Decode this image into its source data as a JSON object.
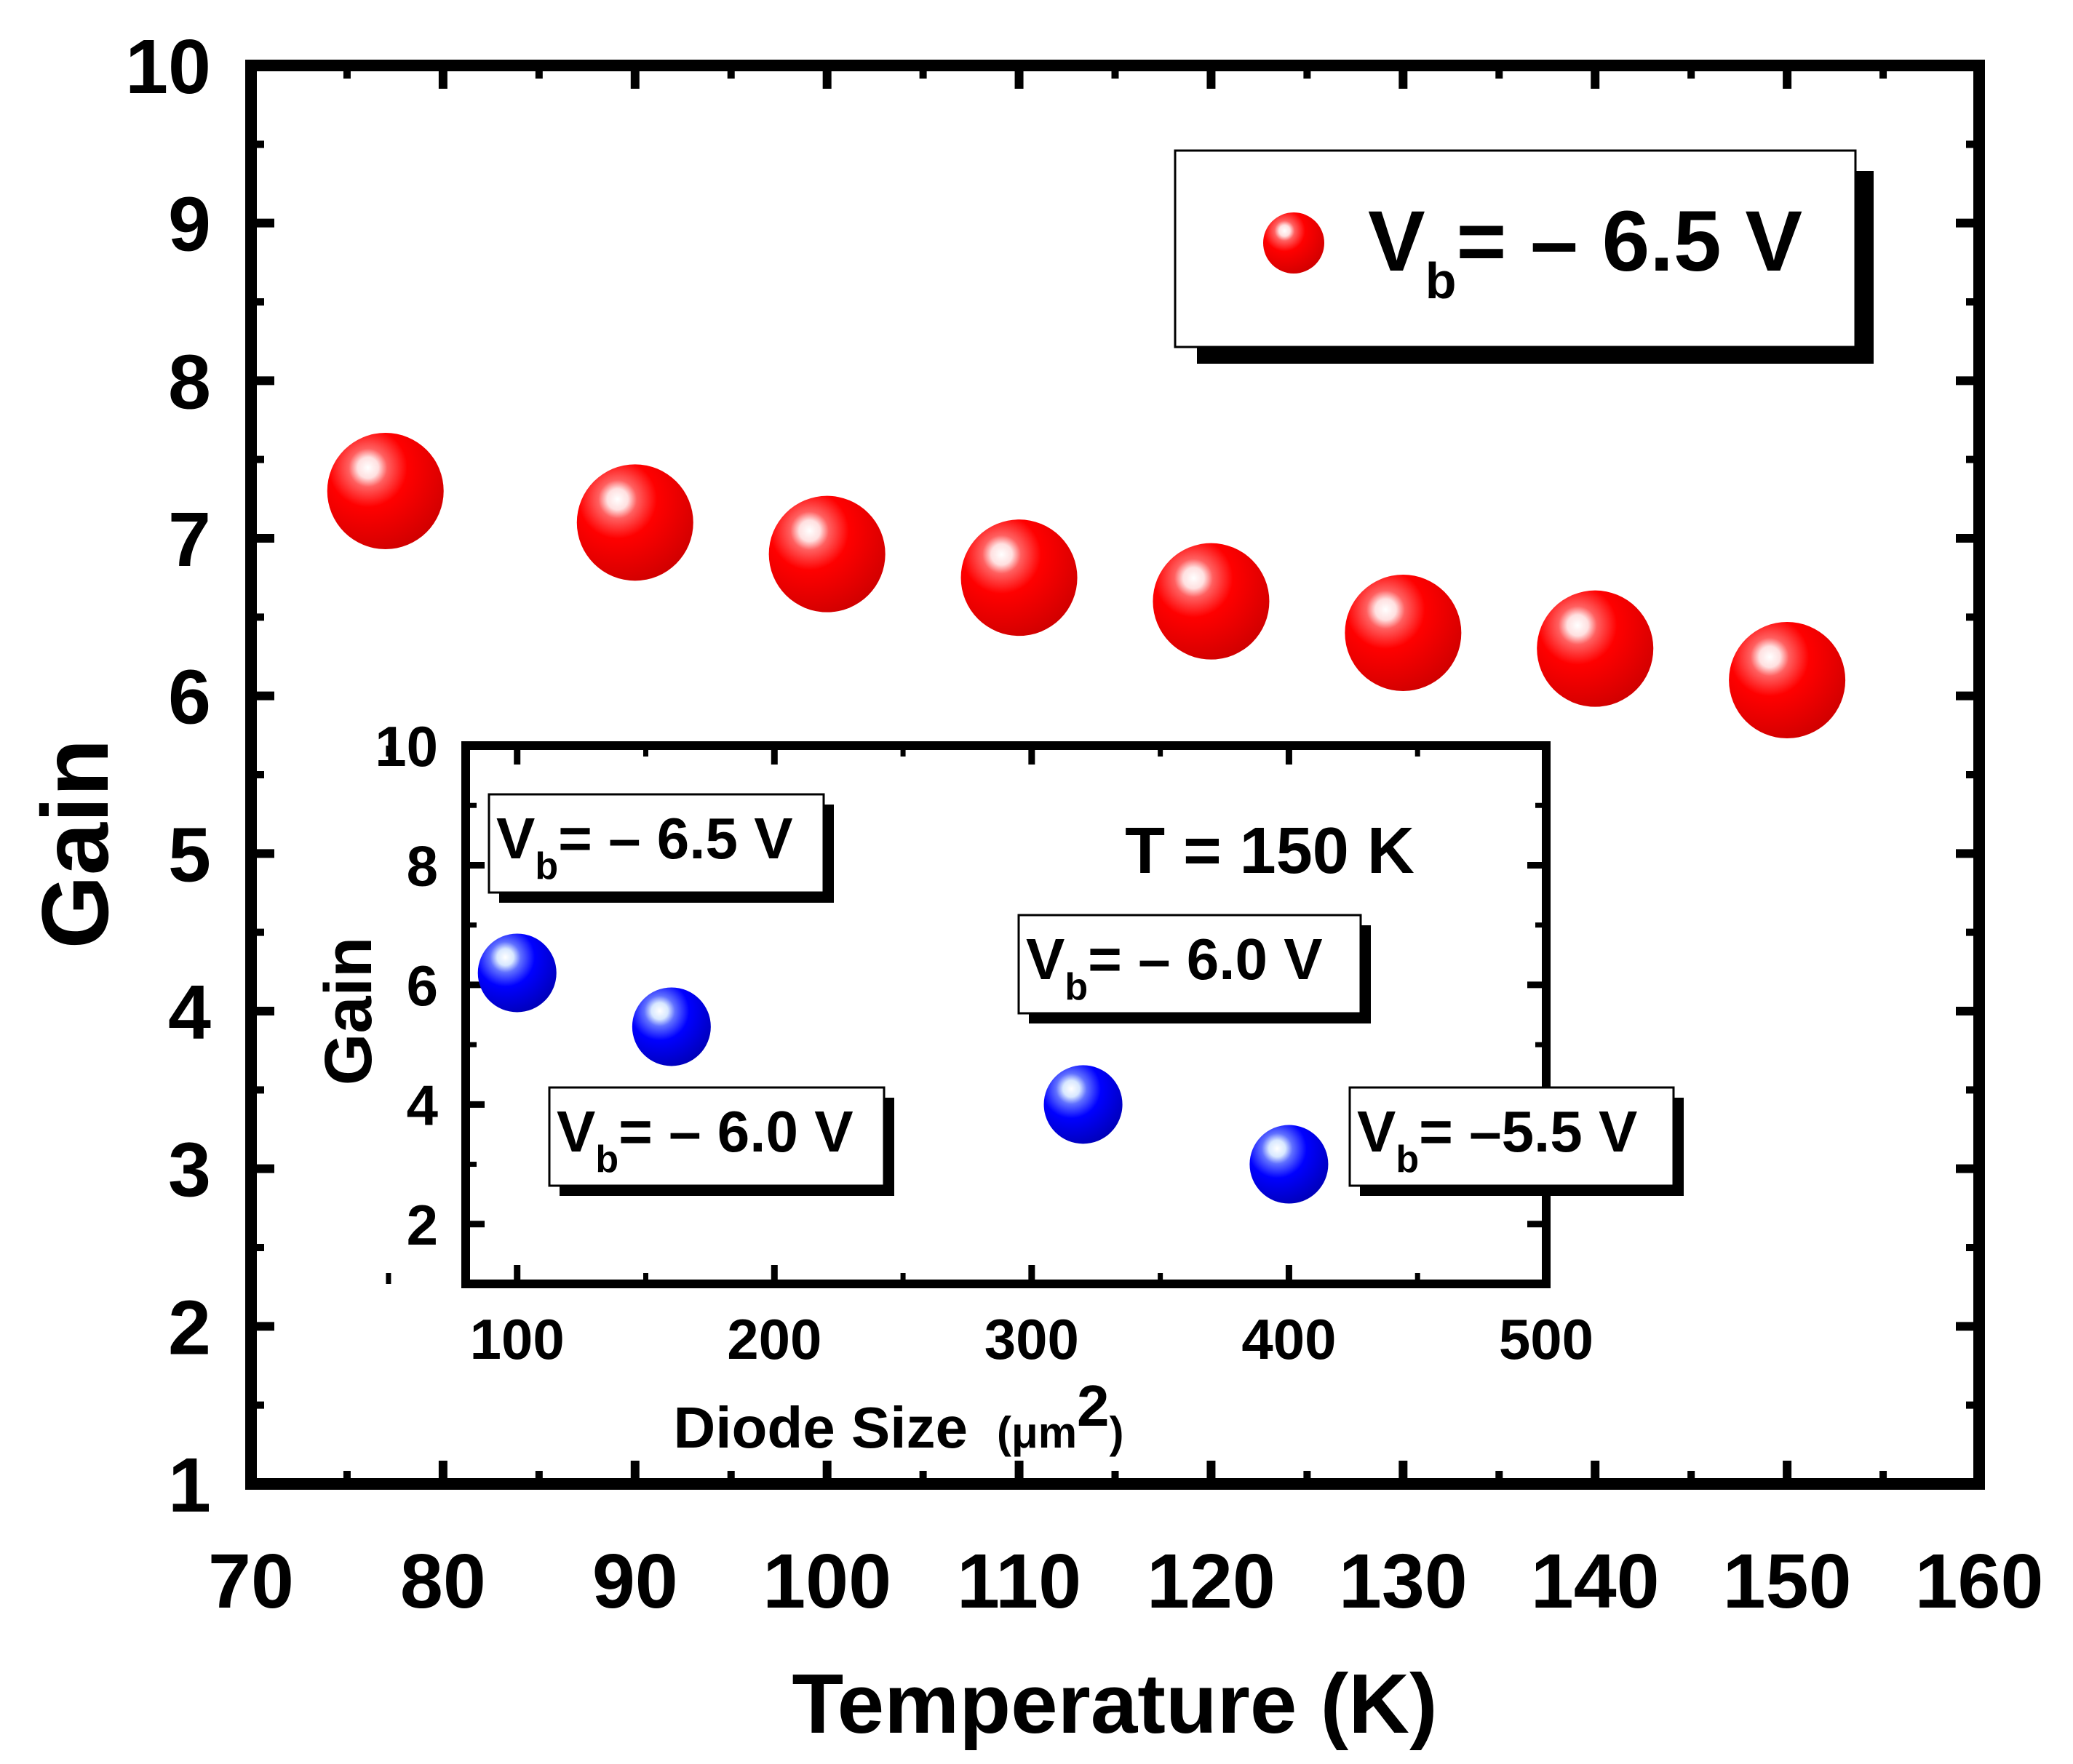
{
  "chart_data": [
    {
      "type": "scatter",
      "title": "",
      "xlabel": "Temperature (K)",
      "ylabel": "Gain",
      "xlim": [
        70,
        160
      ],
      "ylim": [
        1,
        10
      ],
      "xticks": [
        70,
        80,
        90,
        100,
        110,
        120,
        130,
        140,
        150,
        160
      ],
      "yticks": [
        1,
        2,
        3,
        4,
        5,
        6,
        7,
        8,
        9,
        10
      ],
      "series": [
        {
          "name": "V_b = -6.5 V",
          "color": "#ff0000",
          "x": [
            77,
            90,
            100,
            110,
            120,
            130,
            140,
            150
          ],
          "y": [
            7.3,
            7.1,
            6.9,
            6.75,
            6.6,
            6.4,
            6.3,
            6.1
          ]
        }
      ],
      "legend": {
        "position": "top-right",
        "label_main": "V",
        "label_sub": "b",
        "label_rest": "= – 6.5 V"
      }
    },
    {
      "type": "scatter",
      "title": "T = 150 K",
      "xlabel_main": "Diode Size",
      "xlabel_unit_main": "(μm",
      "xlabel_unit_sup": "2",
      "xlabel_unit_close": ")",
      "ylabel": "Gain",
      "xlim": [
        80,
        500
      ],
      "ylim": [
        1,
        10
      ],
      "xticks": [
        100,
        200,
        300,
        400,
        500
      ],
      "yticks": [
        2,
        4,
        6,
        8,
        10
      ],
      "series": [
        {
          "name": "inset",
          "color": "#0000ff",
          "x": [
            100,
            160,
            320,
            400
          ],
          "y": [
            6.2,
            5.3,
            4.0,
            3.0
          ]
        }
      ],
      "annotations": [
        {
          "main": "V",
          "sub": "b",
          "rest": "= – 6.5 V",
          "for_point": 0
        },
        {
          "main": "V",
          "sub": "b",
          "rest": "= – 6.0 V",
          "for_point": 1
        },
        {
          "main": "V",
          "sub": "b",
          "rest": "= – 6.0 V",
          "for_point": 2
        },
        {
          "main": "V",
          "sub": "b",
          "rest": "= –5.5 V",
          "for_point": 3
        }
      ]
    }
  ]
}
